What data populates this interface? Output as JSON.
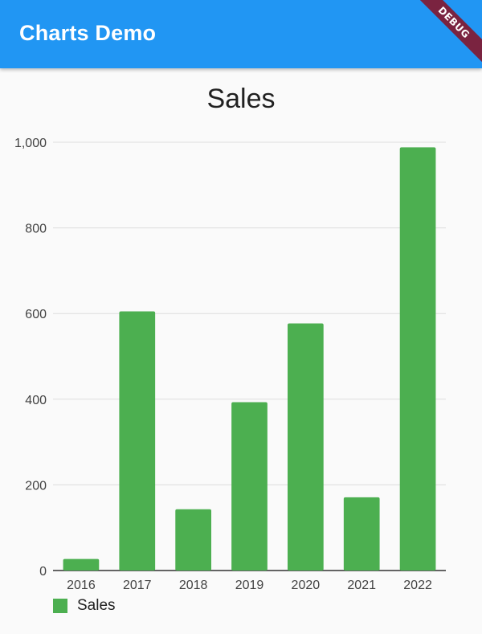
{
  "app": {
    "title": "Charts Demo",
    "debug_banner": "DEBUG",
    "appbar_color": "#2196f3"
  },
  "chart_data": {
    "type": "bar",
    "title": "Sales",
    "categories": [
      "2016",
      "2017",
      "2018",
      "2019",
      "2020",
      "2021",
      "2022"
    ],
    "series": [
      {
        "name": "Sales",
        "values": [
          27,
          605,
          143,
          393,
          577,
          171,
          988
        ],
        "color": "#4caf50"
      }
    ],
    "ylim": [
      0,
      1000
    ],
    "yticks": [
      "0",
      "200",
      "400",
      "600",
      "800",
      "1,000"
    ],
    "grid": true,
    "legend": "bottom-left"
  }
}
